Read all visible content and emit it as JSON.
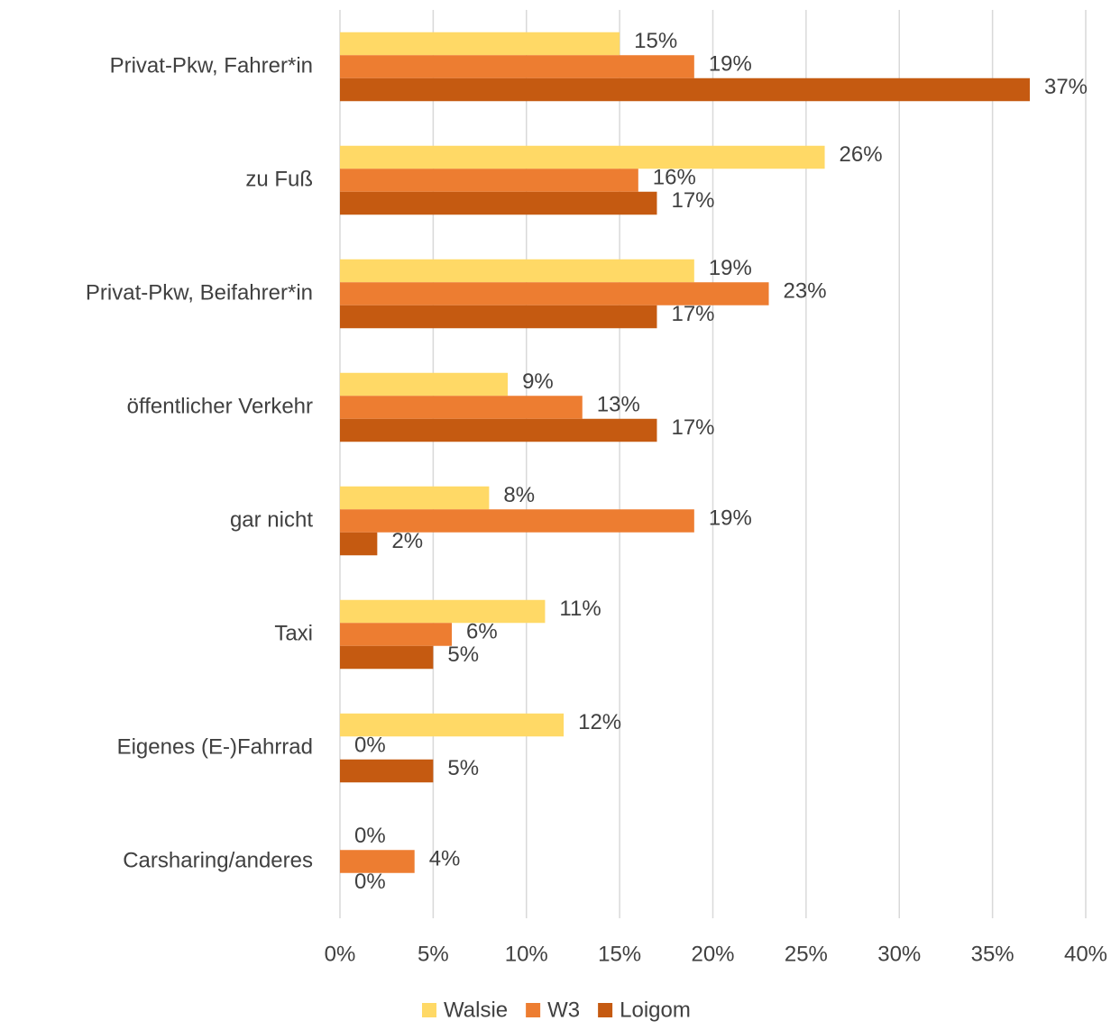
{
  "chart_data": {
    "type": "hbar",
    "categories": [
      "Privat-Pkw, Fahrer*in",
      "zu Fuß",
      "Privat-Pkw, Beifahrer*in",
      "öffentlicher Verkehr",
      "gar nicht",
      "Taxi",
      "Eigenes (E-)Fahrrad",
      "Carsharing/anderes"
    ],
    "series": [
      {
        "name": "Walsie",
        "color": "#FFD966",
        "values": [
          15,
          26,
          19,
          9,
          8,
          11,
          12,
          0
        ],
        "value_labels": [
          "15%",
          "26%",
          "19%",
          "9%",
          "8%",
          "11%",
          "12%",
          "0%"
        ]
      },
      {
        "name": "W3",
        "color": "#ED7D31",
        "values": [
          19,
          16,
          23,
          13,
          19,
          6,
          0,
          4
        ],
        "value_labels": [
          "19%",
          "16%",
          "23%",
          "13%",
          "19%",
          "6%",
          "0%",
          "4%"
        ]
      },
      {
        "name": "Loigom",
        "color": "#C55A11",
        "values": [
          37,
          17,
          17,
          17,
          2,
          5,
          5,
          0
        ],
        "value_labels": [
          "37%",
          "17%",
          "17%",
          "17%",
          "2%",
          "5%",
          "5%",
          "0%"
        ]
      }
    ],
    "xlim": [
      0,
      40
    ],
    "xticks": [
      {
        "value": 0,
        "label": "0%"
      },
      {
        "value": 5,
        "label": "5%"
      },
      {
        "value": 10,
        "label": "10%"
      },
      {
        "value": 15,
        "label": "15%"
      },
      {
        "value": 20,
        "label": "20%"
      },
      {
        "value": 25,
        "label": "25%"
      },
      {
        "value": 30,
        "label": "30%"
      },
      {
        "value": 35,
        "label": "35%"
      },
      {
        "value": 40,
        "label": "40%"
      }
    ],
    "grid": true,
    "legend": "bottom"
  }
}
